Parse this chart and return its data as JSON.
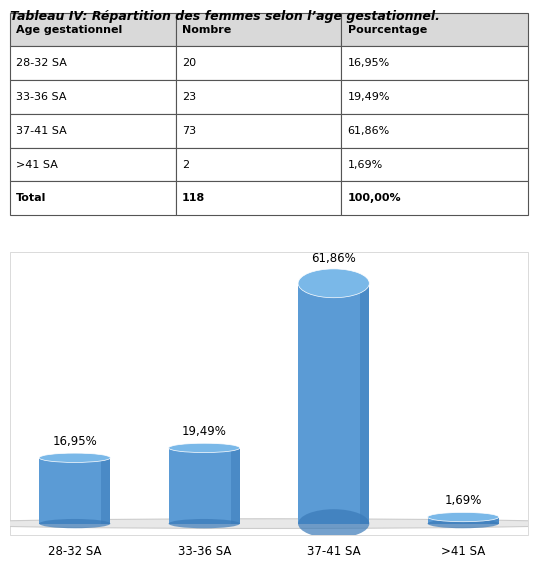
{
  "title": "Tableau IV: Répartition des femmes selon l’age gestationnel.",
  "table_headers": [
    "Age gestationnel",
    "Nombre",
    "Pourcentage"
  ],
  "table_rows": [
    [
      "28-32 SA",
      "20",
      "16,95%"
    ],
    [
      "33-36 SA",
      "23",
      "19,49%"
    ],
    [
      "37-41 SA",
      "73",
      "61,86%"
    ],
    [
      ">41 SA",
      "2",
      "1,69%"
    ],
    [
      "Total",
      "118",
      "100,00%"
    ]
  ],
  "categories": [
    "28-32 SA",
    "33-36 SA",
    "37-41 SA",
    ">41 SA"
  ],
  "values": [
    16.95,
    19.49,
    61.86,
    1.69
  ],
  "labels": [
    "16,95%",
    "19,49%",
    "61,86%",
    "1,69%"
  ],
  "bar_color_top": "#6baed6",
  "bar_color_body": "#4292c6",
  "bar_color_dark": "#2171b5",
  "bar_color_light": "#9ecae1",
  "background_color": "#ffffff",
  "header_bg": "#d9d9d9",
  "table_border_color": "#555555",
  "title_fontsize": 9,
  "label_fontsize": 8.5,
  "tick_fontsize": 8.5
}
